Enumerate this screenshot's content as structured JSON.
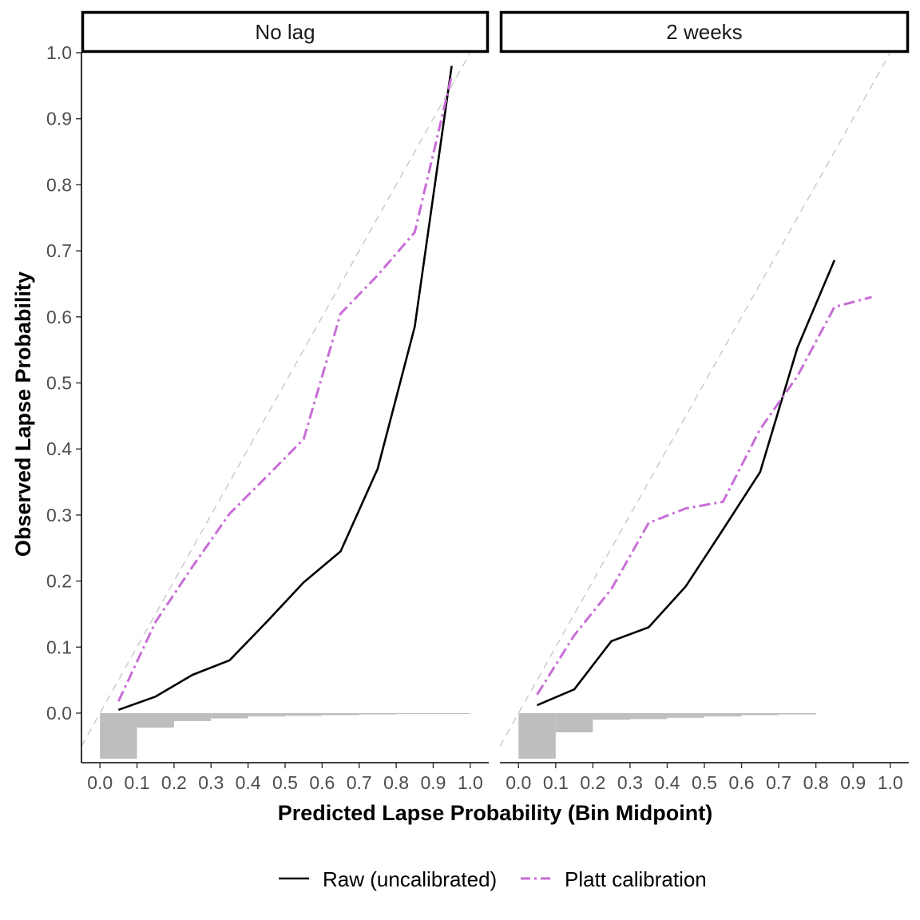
{
  "chart_data": {
    "type": "line",
    "xlabel": "Predicted Lapse Probability (Bin Midpoint)",
    "ylabel": "Observed Lapse Probability",
    "xlim": [
      -0.05,
      1.05
    ],
    "ylim": [
      -0.075,
      1.0
    ],
    "x_ticks": [
      "0.0",
      "0.1",
      "0.2",
      "0.3",
      "0.4",
      "0.5",
      "0.6",
      "0.7",
      "0.8",
      "0.9",
      "1.0"
    ],
    "y_ticks": [
      "0.0",
      "0.1",
      "0.2",
      "0.3",
      "0.4",
      "0.5",
      "0.6",
      "0.7",
      "0.8",
      "0.9",
      "1.0"
    ],
    "grid": false,
    "legend_position": "bottom",
    "reference_line": "y = x (dashed, light grey)",
    "colors": {
      "raw": "#000000",
      "platt": "#c86dd7",
      "reference": "#c8c8c8",
      "histogram": "#bebebe"
    },
    "series_styles": {
      "raw": "solid",
      "platt": "dash-dot"
    },
    "legend": [
      "Raw (uncalibrated)",
      "Platt calibration"
    ],
    "panels": [
      {
        "strip": "No lag",
        "series": [
          {
            "name": "Raw (uncalibrated)",
            "x": [
              0.05,
              0.15,
              0.25,
              0.35,
              0.45,
              0.55,
              0.65,
              0.75,
              0.85,
              0.95
            ],
            "y": [
              0.005,
              0.025,
              0.058,
              0.08,
              0.138,
              0.198,
              0.245,
              0.37,
              0.585,
              0.98
            ]
          },
          {
            "name": "Platt calibration",
            "x": [
              0.05,
              0.15,
              0.25,
              0.35,
              0.45,
              0.55,
              0.65,
              0.75,
              0.85,
              0.95
            ],
            "y": [
              0.018,
              0.138,
              0.222,
              0.302,
              0.358,
              0.415,
              0.605,
              0.663,
              0.728,
              0.965
            ]
          }
        ],
        "histogram": {
          "bins": [
            "0.0-0.1",
            "0.1-0.2",
            "0.2-0.3",
            "0.3-0.4",
            "0.4-0.5",
            "0.5-0.6",
            "0.6-0.7",
            "0.7-0.8",
            "0.8-0.9",
            "0.9-1.0"
          ],
          "depth": [
            0.069,
            0.022,
            0.012,
            0.008,
            0.005,
            0.004,
            0.003,
            0.002,
            0.001,
            0.001
          ]
        }
      },
      {
        "strip": "2 weeks",
        "series": [
          {
            "name": "Raw (uncalibrated)",
            "x": [
              0.05,
              0.15,
              0.25,
              0.35,
              0.45,
              0.55,
              0.65,
              0.75,
              0.85
            ],
            "y": [
              0.012,
              0.036,
              0.109,
              0.13,
              0.192,
              0.278,
              0.365,
              0.553,
              0.686
            ]
          },
          {
            "name": "Platt calibration",
            "x": [
              0.05,
              0.15,
              0.25,
              0.35,
              0.45,
              0.55,
              0.65,
              0.75,
              0.85,
              0.95
            ],
            "y": [
              0.028,
              0.118,
              0.188,
              0.288,
              0.31,
              0.32,
              0.43,
              0.51,
              0.615,
              0.63
            ]
          }
        ],
        "histogram": {
          "bins": [
            "0.0-0.1",
            "0.1-0.2",
            "0.2-0.3",
            "0.3-0.4",
            "0.4-0.5",
            "0.5-0.6",
            "0.6-0.7",
            "0.7-0.8"
          ],
          "depth": [
            0.069,
            0.029,
            0.01,
            0.009,
            0.007,
            0.005,
            0.003,
            0.002
          ]
        }
      }
    ]
  }
}
